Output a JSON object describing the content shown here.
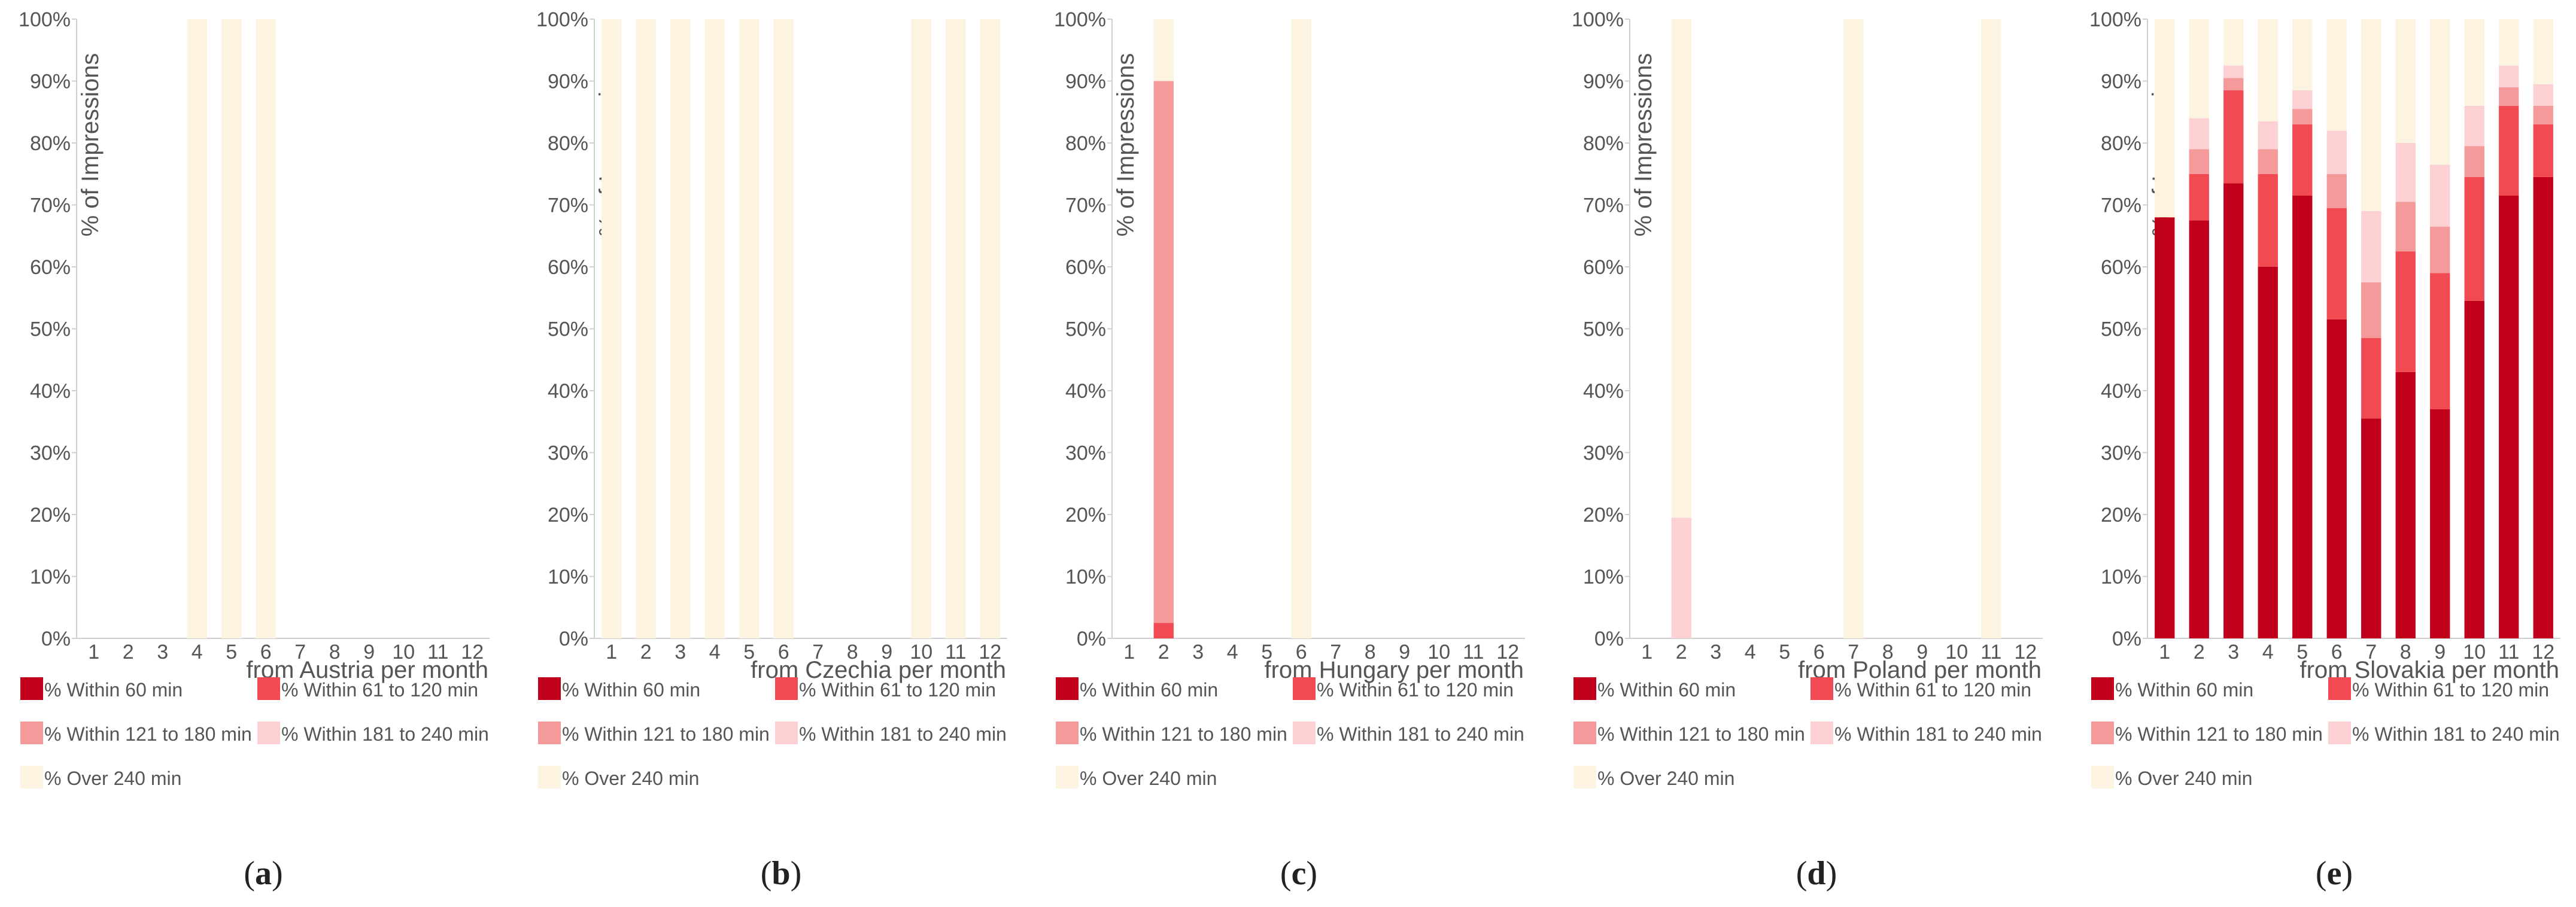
{
  "colors": {
    "within_60": "#c0001a",
    "within_61_120": "#f24a52",
    "within_121_180": "#f59a9a",
    "within_181_240": "#fdd0d4",
    "over_240": "#fdf3e1"
  },
  "legend": [
    {
      "key": "within_60",
      "label": "% Within 60 min"
    },
    {
      "key": "within_61_120",
      "label": "% Within 61 to 120 min"
    },
    {
      "key": "within_121_180",
      "label": "% Within 121 to 180 min"
    },
    {
      "key": "within_181_240",
      "label": "% Within 181 to 240 min"
    },
    {
      "key": "over_240",
      "label": "% Over 240 min"
    }
  ],
  "chart_data": [
    {
      "type": "bar",
      "stacked": true,
      "caption_letter": "a",
      "xlabel": "from Austria per month",
      "ylabel": "% of Impressions",
      "categories": [
        "1",
        "2",
        "3",
        "4",
        "5",
        "6",
        "7",
        "8",
        "9",
        "10",
        "11",
        "12"
      ],
      "yticks": [
        "0%",
        "10%",
        "20%",
        "30%",
        "40%",
        "50%",
        "60%",
        "70%",
        "80%",
        "90%",
        "100%"
      ],
      "ylim": [
        0,
        100
      ],
      "series": [
        {
          "key": "within_60",
          "name": "% Within 60 min",
          "values": [
            0,
            0,
            0,
            0,
            0,
            0,
            0,
            0,
            0,
            0,
            0,
            0
          ]
        },
        {
          "key": "within_61_120",
          "name": "% Within 61 to 120 min",
          "values": [
            0,
            0,
            0,
            0,
            0,
            0,
            0,
            0,
            0,
            0,
            0,
            0
          ]
        },
        {
          "key": "within_121_180",
          "name": "% Within 121 to 180 min",
          "values": [
            0,
            0,
            0,
            0,
            0,
            0,
            0,
            0,
            0,
            0,
            0,
            0
          ]
        },
        {
          "key": "within_181_240",
          "name": "% Within 181 to 240 min",
          "values": [
            0,
            0,
            0,
            0,
            0,
            0,
            0,
            0,
            0,
            0,
            0,
            0
          ]
        },
        {
          "key": "over_240",
          "name": "% Over 240 min",
          "values": [
            0,
            0,
            0,
            100,
            100,
            100,
            0,
            0,
            0,
            0,
            0,
            0
          ]
        }
      ]
    },
    {
      "type": "bar",
      "stacked": true,
      "caption_letter": "b",
      "xlabel": "from Czechia per month",
      "ylabel": "% of Impressions",
      "categories": [
        "1",
        "2",
        "3",
        "4",
        "5",
        "6",
        "7",
        "8",
        "9",
        "10",
        "11",
        "12"
      ],
      "yticks": [
        "0%",
        "10%",
        "20%",
        "30%",
        "40%",
        "50%",
        "60%",
        "70%",
        "80%",
        "90%",
        "100%"
      ],
      "ylim": [
        0,
        100
      ],
      "series": [
        {
          "key": "within_60",
          "name": "% Within 60 min",
          "values": [
            0,
            0,
            0,
            0,
            0,
            0,
            0,
            0,
            0,
            0,
            0,
            0
          ]
        },
        {
          "key": "within_61_120",
          "name": "% Within 61 to 120 min",
          "values": [
            0,
            0,
            0,
            0,
            0,
            0,
            0,
            0,
            0,
            0,
            0,
            0
          ]
        },
        {
          "key": "within_121_180",
          "name": "% Within 121 to 180 min",
          "values": [
            0,
            0,
            0,
            0,
            0,
            0,
            0,
            0,
            0,
            0,
            0,
            0
          ]
        },
        {
          "key": "within_181_240",
          "name": "% Within 181 to 240 min",
          "values": [
            0,
            0,
            0,
            0,
            0,
            0,
            0,
            0,
            0,
            0,
            0,
            0
          ]
        },
        {
          "key": "over_240",
          "name": "% Over 240 min",
          "values": [
            100,
            100,
            100,
            100,
            100,
            100,
            0,
            0,
            0,
            100,
            100,
            100
          ]
        }
      ]
    },
    {
      "type": "bar",
      "stacked": true,
      "caption_letter": "c",
      "xlabel": "from Hungary per month",
      "ylabel": "% of Impressions",
      "categories": [
        "1",
        "2",
        "3",
        "4",
        "5",
        "6",
        "7",
        "8",
        "9",
        "10",
        "11",
        "12"
      ],
      "yticks": [
        "0%",
        "10%",
        "20%",
        "30%",
        "40%",
        "50%",
        "60%",
        "70%",
        "80%",
        "90%",
        "100%"
      ],
      "ylim": [
        0,
        100
      ],
      "series": [
        {
          "key": "within_60",
          "name": "% Within 60 min",
          "values": [
            0,
            0,
            0,
            0,
            0,
            0,
            0,
            0,
            0,
            0,
            0,
            0
          ]
        },
        {
          "key": "within_61_120",
          "name": "% Within 61 to 120 min",
          "values": [
            0,
            2.5,
            0,
            0,
            0,
            0,
            0,
            0,
            0,
            0,
            0,
            0
          ]
        },
        {
          "key": "within_121_180",
          "name": "% Within 121 to 180 min",
          "values": [
            0,
            87.5,
            0,
            0,
            0,
            0,
            0,
            0,
            0,
            0,
            0,
            0
          ]
        },
        {
          "key": "within_181_240",
          "name": "% Within 181 to 240 min",
          "values": [
            0,
            0,
            0,
            0,
            0,
            0,
            0,
            0,
            0,
            0,
            0,
            0
          ]
        },
        {
          "key": "over_240",
          "name": "% Over 240 min",
          "values": [
            0,
            10,
            0,
            0,
            0,
            100,
            0,
            0,
            0,
            0,
            0,
            0
          ]
        }
      ]
    },
    {
      "type": "bar",
      "stacked": true,
      "caption_letter": "d",
      "xlabel": "from Poland per month",
      "ylabel": "% of Impressions",
      "categories": [
        "1",
        "2",
        "3",
        "4",
        "5",
        "6",
        "7",
        "8",
        "9",
        "10",
        "11",
        "12"
      ],
      "yticks": [
        "0%",
        "10%",
        "20%",
        "30%",
        "40%",
        "50%",
        "60%",
        "70%",
        "80%",
        "90%",
        "100%"
      ],
      "ylim": [
        0,
        100
      ],
      "series": [
        {
          "key": "within_60",
          "name": "% Within 60 min",
          "values": [
            0,
            0,
            0,
            0,
            0,
            0,
            0,
            0,
            0,
            0,
            0,
            0
          ]
        },
        {
          "key": "within_61_120",
          "name": "% Within 61 to 120 min",
          "values": [
            0,
            0,
            0,
            0,
            0,
            0,
            0,
            0,
            0,
            0,
            0,
            0
          ]
        },
        {
          "key": "within_121_180",
          "name": "% Within 121 to 180 min",
          "values": [
            0,
            0,
            0,
            0,
            0,
            0,
            0,
            0,
            0,
            0,
            0,
            0
          ]
        },
        {
          "key": "within_181_240",
          "name": "% Within 181 to 240 min",
          "values": [
            0,
            19.5,
            0,
            0,
            0,
            0,
            0,
            0,
            0,
            0,
            0,
            0
          ]
        },
        {
          "key": "over_240",
          "name": "% Over 240 min",
          "values": [
            0,
            80.5,
            0,
            0,
            0,
            0,
            100,
            0,
            0,
            0,
            100,
            0
          ]
        }
      ]
    },
    {
      "type": "bar",
      "stacked": true,
      "caption_letter": "e",
      "xlabel": "from Slovakia per month",
      "ylabel": "% of Impressions",
      "categories": [
        "1",
        "2",
        "3",
        "4",
        "5",
        "6",
        "7",
        "8",
        "9",
        "10",
        "11",
        "12"
      ],
      "yticks": [
        "0%",
        "10%",
        "20%",
        "30%",
        "40%",
        "50%",
        "60%",
        "70%",
        "80%",
        "90%",
        "100%"
      ],
      "ylim": [
        0,
        100
      ],
      "series": [
        {
          "key": "within_60",
          "name": "% Within 60 min",
          "values": [
            68,
            67.5,
            73.5,
            60,
            71.5,
            51.5,
            35.5,
            43,
            37,
            54.5,
            71.5,
            74.5
          ]
        },
        {
          "key": "within_61_120",
          "name": "% Within 61 to 120 min",
          "values": [
            0,
            7.5,
            15,
            15,
            11.5,
            18,
            13,
            19.5,
            22,
            20,
            14.5,
            8.5
          ]
        },
        {
          "key": "within_121_180",
          "name": "% Within 121 to 180 min",
          "values": [
            0,
            4,
            2,
            4,
            2.5,
            5.5,
            9,
            8,
            7.5,
            5,
            3,
            3
          ]
        },
        {
          "key": "within_181_240",
          "name": "% Within 181 to 240 min",
          "values": [
            0,
            5,
            2,
            4.5,
            3,
            7,
            11.5,
            9.5,
            10,
            6.5,
            3.5,
            3.5
          ]
        },
        {
          "key": "over_240",
          "name": "% Over 240 min",
          "values": [
            32,
            16,
            7.5,
            16.5,
            11.5,
            18,
            31,
            20,
            23.5,
            14,
            7.5,
            10.5
          ]
        }
      ]
    }
  ]
}
